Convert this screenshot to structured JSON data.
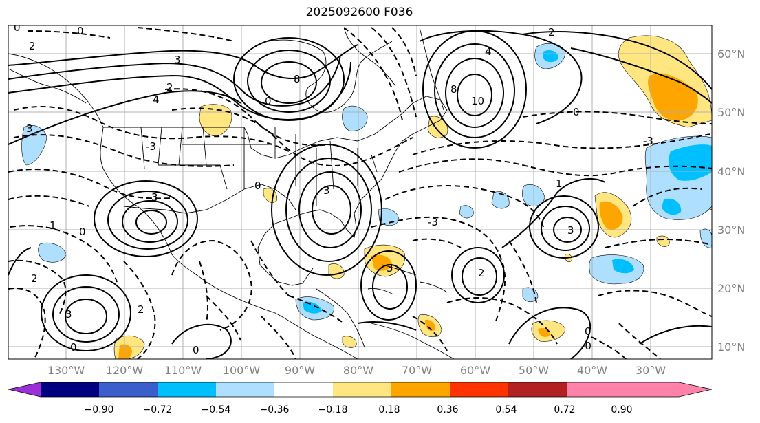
{
  "title": "2025092600 F036",
  "lat_labels": [
    "60°N",
    "50°N",
    "40°N",
    "30°N",
    "20°N",
    "10°N"
  ],
  "lon_labels": [
    "130°W",
    "120°W",
    "110°W",
    "100°W",
    "90°W",
    "80°W",
    "70°W",
    "60°W",
    "50°W",
    "40°W",
    "30°W"
  ],
  "colorbar": {
    "ticks": [
      "−0.90",
      "−0.72",
      "−0.54",
      "−0.36",
      "−0.18",
      "0.18",
      "0.36",
      "0.54",
      "0.72",
      "0.90"
    ],
    "colors": [
      "#9b30d9",
      "#000080",
      "#3a5fcd",
      "#00bfff",
      "#afdfff",
      "#ffffff",
      "#ffe680",
      "#ffa500",
      "#ff3300",
      "#b22222",
      "#ff82ab"
    ]
  },
  "contour_labels": [
    "0",
    "2",
    "3",
    "4",
    "8",
    "10",
    "-0",
    "-3",
    "1"
  ],
  "colors": {
    "shade_pos_1": "#ffe680",
    "shade_pos_2": "#ffa500",
    "shade_neg_1": "#afdfff",
    "shade_neg_2": "#00bfff",
    "land_line": "#000000",
    "grid": "#b0b0b0"
  }
}
